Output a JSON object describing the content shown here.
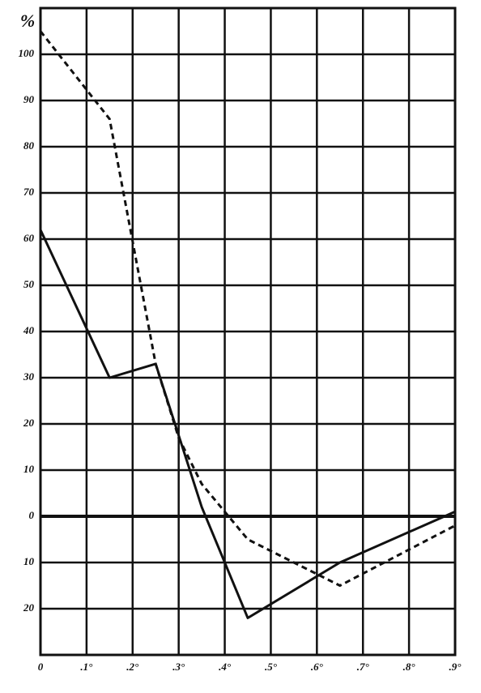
{
  "chart_data": {
    "type": "line",
    "y_label": "%",
    "xlim": [
      0,
      0.9
    ],
    "ylim": [
      -30,
      110
    ],
    "xticks": [
      0,
      {
        "value": 0.1,
        "label": ".1°"
      },
      {
        "value": 0.2,
        "label": ".2°"
      },
      {
        "value": 0.3,
        "label": ".3°"
      },
      {
        "value": 0.4,
        "label": ".4°"
      },
      {
        "value": 0.5,
        "label": ".5°"
      },
      {
        "value": 0.6,
        "label": ".6°"
      },
      {
        "value": 0.7,
        "label": ".7°"
      },
      {
        "value": 0.8,
        "label": ".8°"
      },
      {
        "value": 0.9,
        "label": ".9°"
      }
    ],
    "yticks": [
      {
        "value": -20,
        "label": "20"
      },
      {
        "value": -10,
        "label": "10"
      },
      0,
      10,
      20,
      30,
      40,
      50,
      60,
      70,
      80,
      90,
      100
    ],
    "grid": true,
    "series": [
      {
        "color": "#111111",
        "dash": false,
        "x": [
          0,
          0.15,
          0.25,
          0.35,
          0.45,
          0.65,
          0.9
        ],
        "values": [
          62,
          30,
          33,
          2,
          -22,
          -10,
          1
        ]
      },
      {
        "color": "#111111",
        "dash": true,
        "x": [
          0,
          0.15,
          0.25,
          0.3,
          0.35,
          0.45,
          0.65,
          0.9
        ],
        "values": [
          105,
          86,
          33,
          17,
          7,
          -5,
          -15,
          -2
        ]
      }
    ]
  }
}
